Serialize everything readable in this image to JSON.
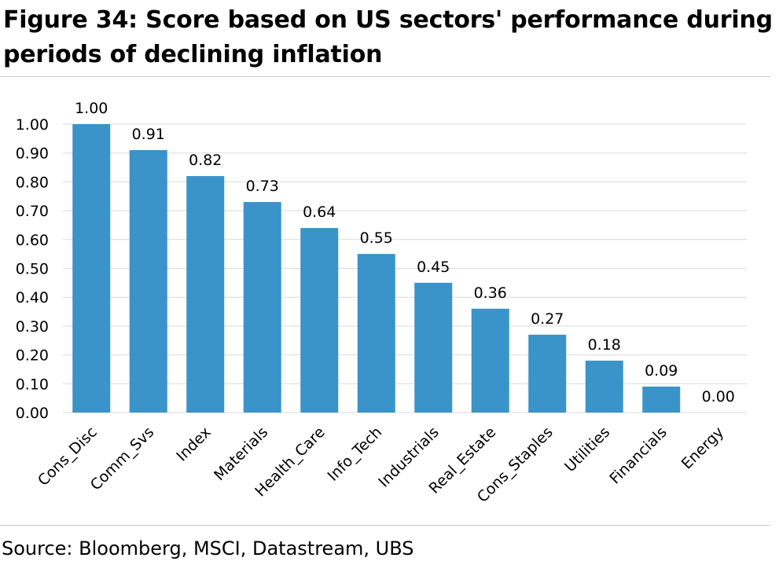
{
  "title": "Figure 34: Score based on US sectors' performance during periods of declining inflation",
  "source": "Source: Bloomberg, MSCI, Datastream, UBS",
  "colors": {
    "bar": "#3a93c9",
    "grid": "#d9d9d9",
    "rule": "#c8c8c8"
  },
  "chart_data": {
    "type": "bar",
    "categories": [
      "Cons_Disc",
      "Comm_Svs",
      "Index",
      "Materials",
      "Health_Care",
      "Info_Tech",
      "Industrials",
      "Real_Estate",
      "Cons_Staples",
      "Utilities",
      "Financials",
      "Energy"
    ],
    "values": [
      1.0,
      0.91,
      0.82,
      0.73,
      0.64,
      0.55,
      0.45,
      0.36,
      0.27,
      0.18,
      0.09,
      0.0
    ],
    "data_labels": [
      "1.00",
      "0.91",
      "0.82",
      "0.73",
      "0.64",
      "0.55",
      "0.45",
      "0.36",
      "0.27",
      "0.18",
      "0.09",
      "0.00"
    ],
    "yticks": [
      "0.00",
      "0.10",
      "0.20",
      "0.30",
      "0.40",
      "0.50",
      "0.60",
      "0.70",
      "0.80",
      "0.90",
      "1.00"
    ],
    "ylim": [
      0,
      1
    ],
    "grid": true,
    "legend": "none"
  }
}
